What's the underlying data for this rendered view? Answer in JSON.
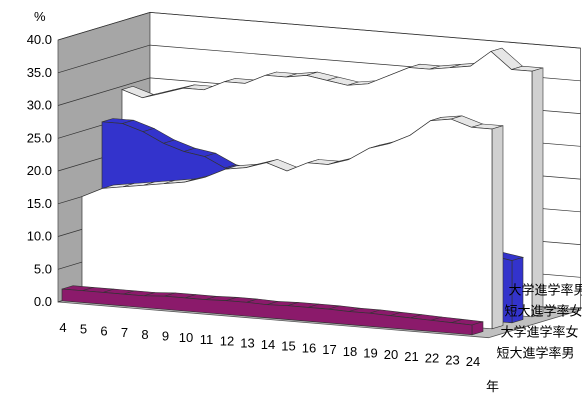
{
  "chart_data": {
    "type": "area",
    "style": "3d",
    "title": "",
    "ylabel": "%",
    "xlabel": "年",
    "ylim": [
      0,
      40
    ],
    "yticks": [
      "0.0",
      "5.0",
      "10.0",
      "15.0",
      "20.0",
      "25.0",
      "30.0",
      "35.0",
      "40.0"
    ],
    "categories": [
      "4",
      "5",
      "6",
      "7",
      "8",
      "9",
      "10",
      "11",
      "12",
      "13",
      "14",
      "15",
      "16",
      "17",
      "18",
      "19",
      "20",
      "21",
      "22",
      "23",
      "24"
    ],
    "grid": true,
    "series": [
      {
        "name": "短大進学率男",
        "color": "#8b1a6b",
        "values": [
          1.8,
          1.8,
          1.8,
          1.8,
          1.8,
          2.0,
          2.0,
          2.0,
          2.1,
          2.1,
          2.0,
          2.1,
          2.1,
          2.1,
          2.0,
          2.0,
          1.9,
          1.8,
          1.7,
          1.6,
          1.5
        ]
      },
      {
        "name": "大学進学率女",
        "color": "#ffffff",
        "values": [
          15.0,
          16.5,
          17.0,
          17.5,
          18.0,
          18.5,
          19.5,
          21.0,
          21.5,
          22.5,
          21.5,
          23.0,
          23.0,
          24.0,
          26.0,
          27.0,
          28.5,
          31.0,
          31.5,
          30.5,
          30.5
        ]
      },
      {
        "name": "短大進学率女",
        "color": "#3333cc",
        "values": [
          25.5,
          25.5,
          24.5,
          23.0,
          22.0,
          21.5,
          20.0,
          19.5,
          18.5,
          17.5,
          16.5,
          15.5,
          14.5,
          13.5,
          12.5,
          11.5,
          11.0,
          10.5,
          10.0,
          10.0,
          9.5
        ]
      },
      {
        "name": "大学進学率男",
        "color": "#ffffff",
        "values": [
          29.5,
          28.5,
          29.5,
          30.5,
          30.5,
          32.0,
          32.0,
          33.5,
          33.5,
          34.0,
          33.5,
          33.0,
          33.5,
          35.0,
          36.5,
          36.5,
          37.0,
          37.5,
          40.0,
          37.5,
          37.5
        ]
      }
    ]
  }
}
